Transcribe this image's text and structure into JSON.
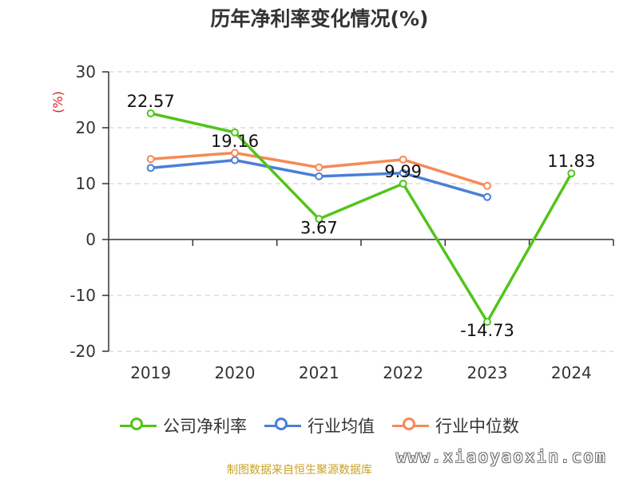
{
  "chart_data": {
    "type": "line",
    "title": "历年净利率变化情况(%)",
    "ylabel": "(%)",
    "xlabel": "",
    "categories": [
      "2019",
      "2020",
      "2021",
      "2022",
      "2023",
      "2024"
    ],
    "ylim": [
      -20,
      30
    ],
    "yticks": [
      30,
      20,
      10,
      0,
      -10,
      -20
    ],
    "grid": true,
    "legend_position": "bottom",
    "series": [
      {
        "name": "公司净利率",
        "color": "#52c41a",
        "values": [
          22.57,
          19.16,
          3.67,
          9.99,
          -14.73,
          11.83
        ],
        "labels": [
          "22.57",
          "19.16",
          "3.67",
          "9.99",
          "-14.73",
          "11.83"
        ]
      },
      {
        "name": "行业均值",
        "color": "#4a7fd9",
        "values": [
          12.8,
          14.2,
          11.3,
          11.9,
          7.6,
          null
        ],
        "labels": []
      },
      {
        "name": "行业中位数",
        "color": "#f58a56",
        "values": [
          14.4,
          15.5,
          12.9,
          14.3,
          9.6,
          null
        ],
        "labels": []
      }
    ]
  },
  "source_note": "制图数据来自恒生聚源数据库",
  "watermark": "www.xiaoyaoxin.com"
}
